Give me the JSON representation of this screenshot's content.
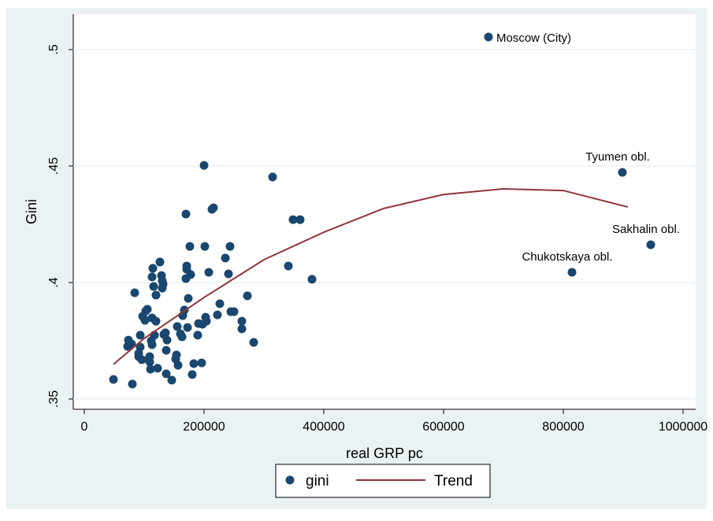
{
  "chart_data": {
    "type": "scatter",
    "x_label": "real GRP pc",
    "y_label": "Gini",
    "xlim": [
      -18421,
      1021053
    ],
    "ylim": [
      0.3456,
      0.5152
    ],
    "xticks": [
      0,
      200000,
      400000,
      600000,
      800000,
      1000000
    ],
    "yticks": [
      {
        "value": 0.35,
        "label": ".35"
      },
      {
        "value": 0.4,
        "label": ".4"
      },
      {
        "value": 0.45,
        "label": ".45"
      },
      {
        "value": 0.5,
        "label": ".5"
      }
    ],
    "grid": true,
    "legend": "bottom",
    "series": [
      {
        "name": "gini",
        "type": "scatter",
        "color": "#1a476f",
        "x": [
          48684,
          80263,
          73684,
          78947,
          72368,
          84211,
          90789,
          93421,
          93421,
          90789,
          96053,
          97368,
          101316,
          102632,
          105263,
          109211,
          109211,
          110526,
          111842,
          113158,
          114474,
          113158,
          113158,
          115789,
          117105,
          119737,
          119737,
          122368,
          126316,
          128947,
          130263,
          130263,
          131579,
          132895,
          135526,
          136842,
          138158,
          136842,
          146053,
          152632,
          153947,
          155263,
          156579,
          160526,
          163158,
          164474,
          167105,
          169737,
          169737,
          171053,
          171053,
          172368,
          173684,
          176316,
          177632,
          180263,
          182895,
          189474,
          190789,
          196053,
          197368,
          200000,
          201316,
          202632,
          203947,
          207895,
          213158,
          215789,
          222368,
          226316,
          235526,
          240789,
          243421,
          244737,
          250000,
          263158,
          263158,
          272368,
          282895,
          314474,
          340789,
          348684,
          360526,
          380263,
          675000,
          814474,
          898684,
          946053
        ],
        "values": [
          0.3584,
          0.3564,
          0.3753,
          0.3736,
          0.3726,
          0.3956,
          0.3696,
          0.3774,
          0.3723,
          0.3682,
          0.3669,
          0.3855,
          0.3838,
          0.3878,
          0.3885,
          0.3682,
          0.3659,
          0.3628,
          0.375,
          0.3733,
          0.4061,
          0.4024,
          0.3848,
          0.3983,
          0.3774,
          0.3946,
          0.3834,
          0.3632,
          0.4088,
          0.403,
          0.4007,
          0.3976,
          0.3993,
          0.3777,
          0.3784,
          0.3709,
          0.3753,
          0.3608,
          0.3581,
          0.3672,
          0.3689,
          0.3811,
          0.3645,
          0.378,
          0.3767,
          0.3858,
          0.3882,
          0.4294,
          0.4017,
          0.4071,
          0.4057,
          0.3807,
          0.3932,
          0.4155,
          0.4034,
          0.3605,
          0.3652,
          0.3774,
          0.3824,
          0.3655,
          0.3821,
          0.4503,
          0.4155,
          0.3851,
          0.3834,
          0.4044,
          0.4314,
          0.4321,
          0.3861,
          0.3909,
          0.4105,
          0.4037,
          0.4155,
          0.3875,
          0.3875,
          0.3834,
          0.3801,
          0.3943,
          0.3743,
          0.4453,
          0.4071,
          0.427,
          0.427,
          0.4014,
          0.5054,
          0.4044,
          0.4473,
          0.4162
        ],
        "labels": [
          null,
          null,
          null,
          null,
          null,
          null,
          null,
          null,
          null,
          null,
          null,
          null,
          null,
          null,
          null,
          null,
          null,
          null,
          null,
          null,
          null,
          null,
          null,
          null,
          null,
          null,
          null,
          null,
          null,
          null,
          null,
          null,
          null,
          null,
          null,
          null,
          null,
          null,
          null,
          null,
          null,
          null,
          null,
          null,
          null,
          null,
          null,
          null,
          null,
          null,
          null,
          null,
          null,
          null,
          null,
          null,
          null,
          null,
          null,
          null,
          null,
          null,
          null,
          null,
          null,
          null,
          null,
          null,
          null,
          null,
          null,
          null,
          null,
          null,
          null,
          null,
          null,
          null,
          null,
          null,
          null,
          null,
          null,
          null,
          "Moscow (City)",
          "Chukotskaya obl.",
          "Tyumen obl.",
          "Sakhalin obl."
        ]
      },
      {
        "name": "Trend",
        "type": "line",
        "color": "#90353b",
        "x": [
          48684,
          100000,
          200000,
          300000,
          400000,
          500000,
          600000,
          700000,
          800000,
          907895
        ],
        "values": [
          0.3649,
          0.376,
          0.3936,
          0.4098,
          0.4216,
          0.4318,
          0.4378,
          0.4402,
          0.4395,
          0.4324
        ]
      }
    ]
  }
}
